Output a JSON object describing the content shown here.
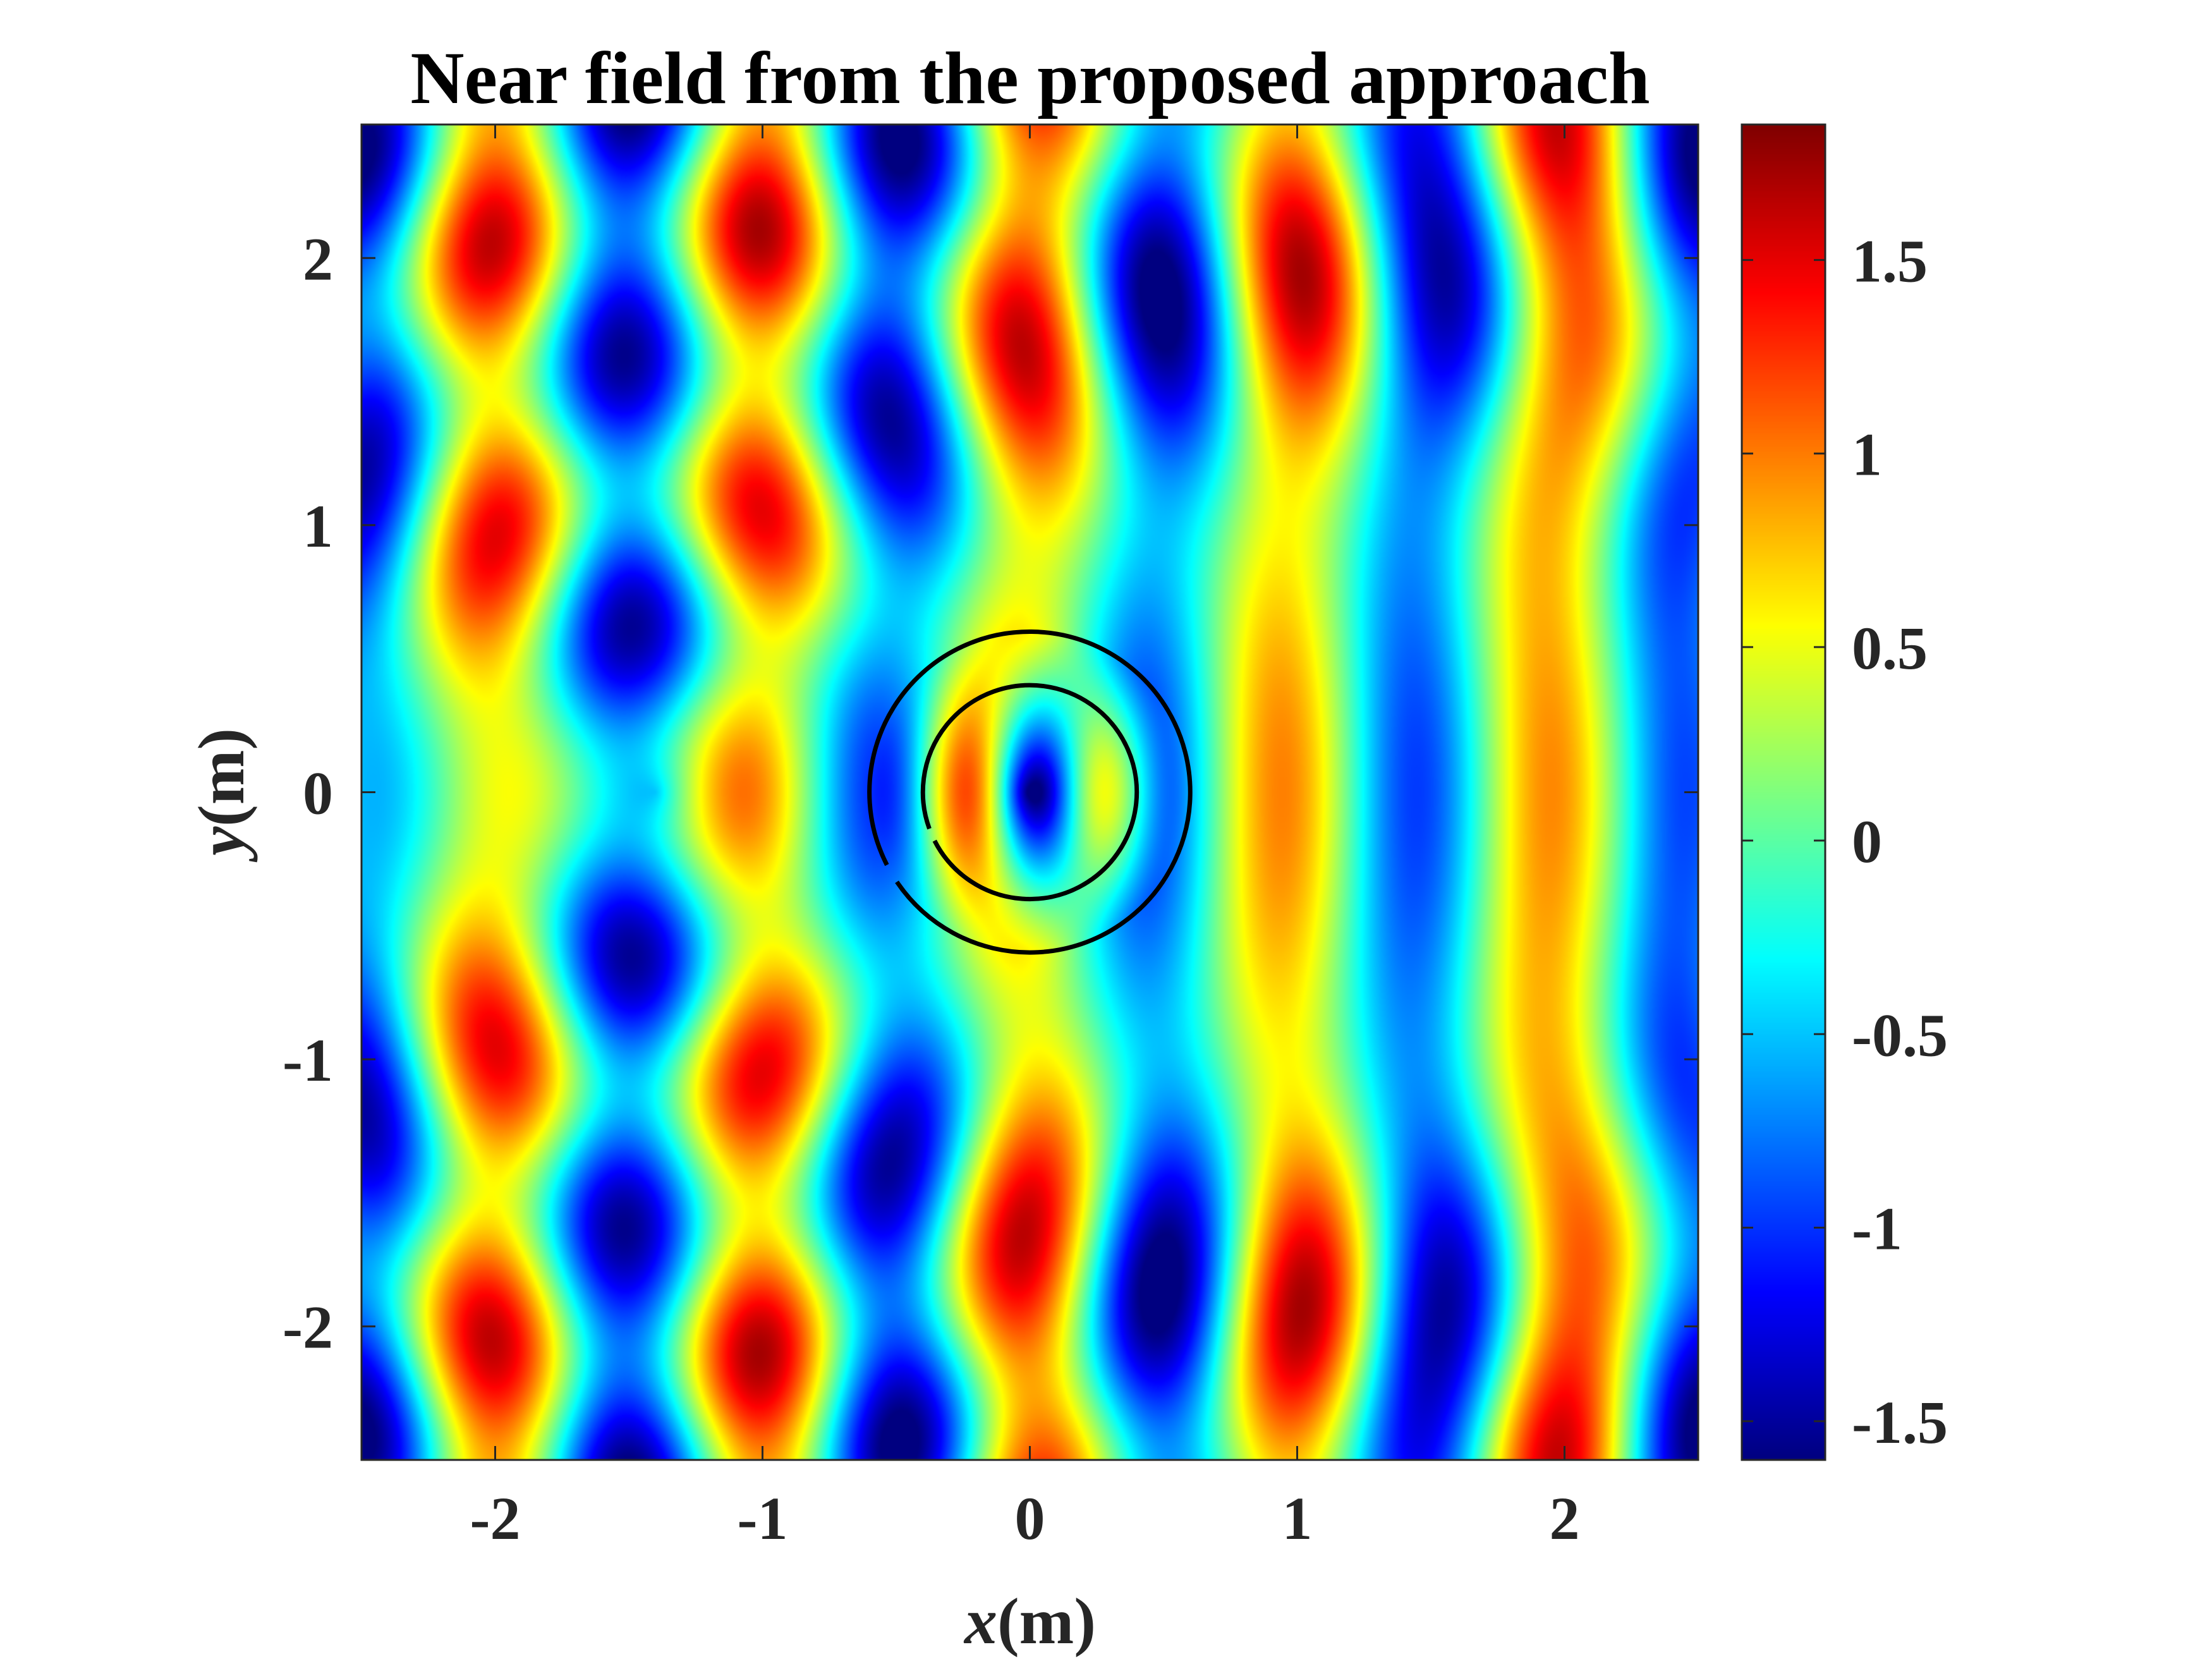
{
  "chart_data": {
    "type": "heatmap",
    "title": "Near field from the proposed approach",
    "xlabel": {
      "var": "x",
      "unit": "(m)"
    },
    "ylabel": {
      "var": "y",
      "unit": "(m)"
    },
    "xlim": [
      -2.5,
      2.5
    ],
    "ylim": [
      -2.5,
      2.5
    ],
    "x_ticks": [
      -2,
      -1,
      0,
      1,
      2
    ],
    "x_tick_labels": [
      "-2",
      "-1",
      "0",
      "1",
      "2"
    ],
    "y_ticks": [
      -2,
      -1,
      0,
      1,
      2
    ],
    "y_tick_labels": [
      "-2",
      "-1",
      "0",
      "1",
      "2"
    ],
    "colormap": "jet",
    "clim": [
      -1.6,
      1.85
    ],
    "colorbar_ticks": [
      -1.5,
      -1,
      -0.5,
      0,
      0.5,
      1,
      1.5
    ],
    "colorbar_tick_labels": [
      "-1.5",
      "-1",
      "-0.5",
      "0",
      "0.5",
      "1",
      "1.5"
    ],
    "colorbar_position": "right",
    "field": {
      "description_kind": "incident plane wave along +x scattered by a split-ring cloak",
      "wavelength": 1.0,
      "incident_amplitude": 1.0
    },
    "boundaries": [
      {
        "type": "arc",
        "center": [
          0,
          0
        ],
        "radius": 0.6,
        "gap_angles_deg": [
          207,
          214
        ]
      },
      {
        "type": "arc",
        "center": [
          0,
          0
        ],
        "radius": 0.4,
        "gap_angles_deg": [
          200,
          207
        ]
      }
    ],
    "grid": false,
    "box": true
  }
}
